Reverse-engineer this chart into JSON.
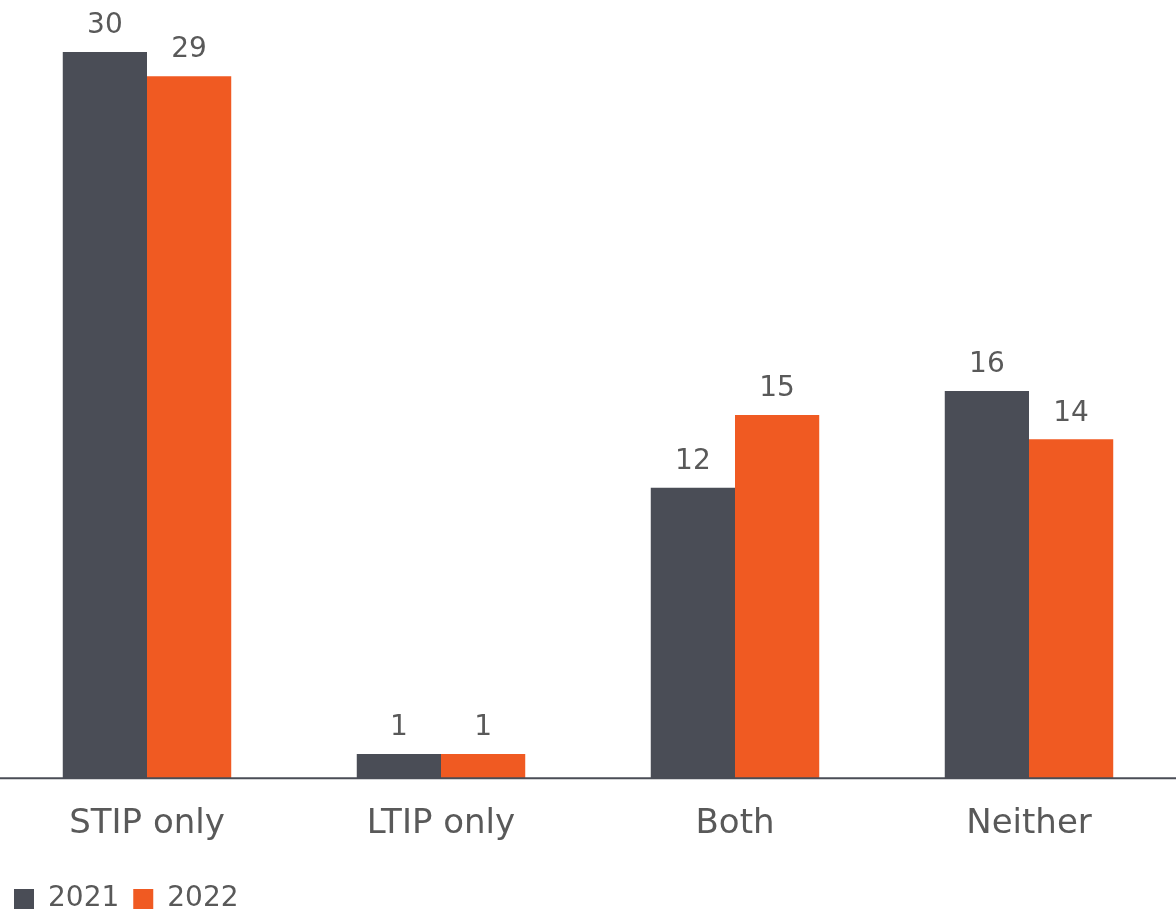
{
  "chart_data": {
    "type": "bar",
    "categories": [
      "STIP only",
      "LTIP only",
      "Both",
      "Neither"
    ],
    "series": [
      {
        "name": "2021",
        "color": "#4a4d56",
        "values": [
          30,
          1,
          12,
          16
        ]
      },
      {
        "name": "2022",
        "color": "#f05a22",
        "values": [
          29,
          1,
          15,
          14
        ]
      }
    ],
    "tick_labels": "x",
    "data_labels": true,
    "legend": "bottom left",
    "grid": false
  }
}
